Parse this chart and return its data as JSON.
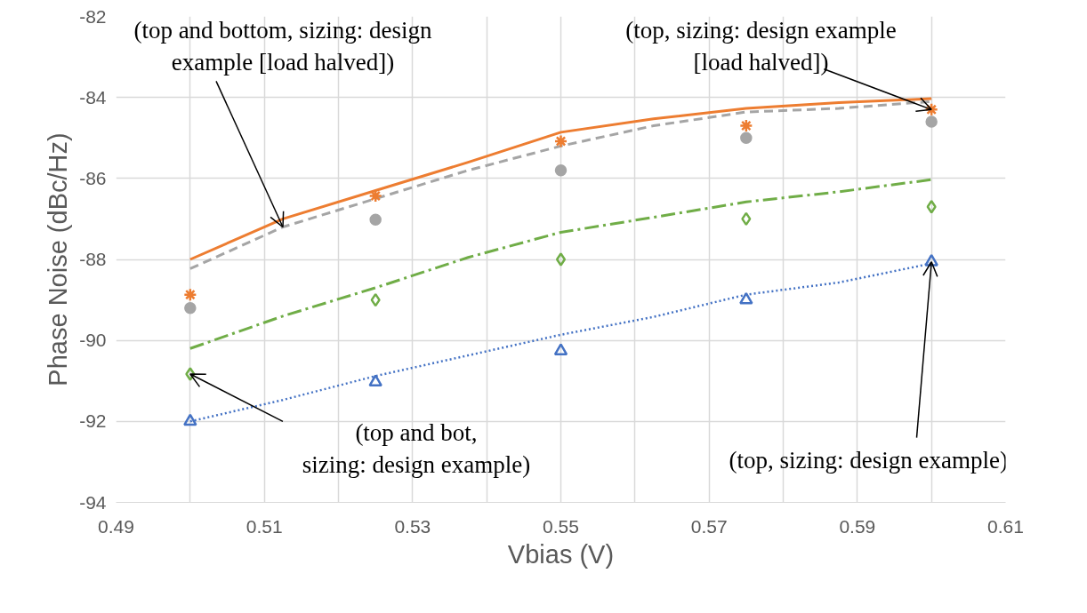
{
  "chart_data": {
    "type": "scatter",
    "xlabel": "Vbias (V)",
    "ylabel": "Phase Noise (dBc/Hz)",
    "xlim": [
      0.49,
      0.61
    ],
    "ylim": [
      -94,
      -82
    ],
    "xticks": [
      0.49,
      {
        "value": 0.5,
        "label": null
      },
      0.51,
      {
        "value": 0.52,
        "label": null
      },
      0.53,
      {
        "value": 0.54,
        "label": null
      },
      0.55,
      {
        "value": 0.56,
        "label": null
      },
      0.57,
      {
        "value": 0.58,
        "label": null
      },
      0.59,
      {
        "value": 0.6,
        "label": null
      },
      0.61
    ],
    "yticks": [
      -94,
      -92,
      -90,
      -88,
      -86,
      -84,
      -82
    ],
    "grid": true,
    "series": [
      {
        "marker": "cross",
        "color": "#ed7d31",
        "x": [
          0.5,
          0.525,
          0.55,
          0.575,
          0.6
        ],
        "values": [
          -88.87,
          -86.43,
          -85.08,
          -84.7,
          -84.3
        ]
      },
      {
        "marker": "circle",
        "color": "#a5a5a5",
        "x": [
          0.5,
          0.525,
          0.55,
          0.575,
          0.6
        ],
        "values": [
          -89.2,
          -87.02,
          -85.8,
          -85.0,
          -84.6
        ]
      },
      {
        "marker": "diamond",
        "color": "#70ad47",
        "x": [
          0.5,
          0.525,
          0.55,
          0.575,
          0.6
        ],
        "values": [
          -90.83,
          -89.0,
          -88.0,
          -87.0,
          -86.7
        ]
      },
      {
        "marker": "triangle",
        "color": "#4472c4",
        "x": [
          0.5,
          0.525,
          0.55,
          0.575,
          0.6
        ],
        "values": [
          -92.0,
          -91.03,
          -90.26,
          -89.0,
          -88.06
        ]
      },
      {
        "type": "line",
        "line_style": "solid",
        "color": "#ed7d31",
        "x": [
          0.5,
          0.5125,
          0.525,
          0.5375,
          0.55,
          0.5625,
          0.575,
          0.5875,
          0.6
        ],
        "values": [
          -88.0,
          -87.0,
          -86.3,
          -85.6,
          -84.86,
          -84.53,
          -84.27,
          -84.13,
          -84.03
        ]
      },
      {
        "type": "line",
        "line_style": "dashed",
        "color": "#a5a5a5",
        "x": [
          0.5,
          0.5125,
          0.525,
          0.5375,
          0.55,
          0.5625,
          0.575,
          0.5875,
          0.6
        ],
        "values": [
          -88.23,
          -87.2,
          -86.5,
          -85.8,
          -85.2,
          -84.7,
          -84.36,
          -84.27,
          -84.1
        ]
      },
      {
        "type": "line",
        "line_style": "dashdot",
        "color": "#70ad47",
        "x": [
          0.5,
          0.5125,
          0.525,
          0.5375,
          0.55,
          0.5625,
          0.575,
          0.5875,
          0.6
        ],
        "values": [
          -90.2,
          -89.4,
          -88.7,
          -87.95,
          -87.33,
          -86.96,
          -86.58,
          -86.33,
          -86.03
        ]
      },
      {
        "type": "line",
        "line_style": "dotted",
        "color": "#4472c4",
        "x": [
          0.5,
          0.5125,
          0.525,
          0.5375,
          0.55,
          0.5625,
          0.575,
          0.5875,
          0.6
        ],
        "values": [
          -92.0,
          -91.47,
          -90.88,
          -90.37,
          -89.86,
          -89.42,
          -88.87,
          -88.57,
          -88.1
        ]
      }
    ],
    "annotations": [
      {
        "text": "(top and bottom, sizing: design\nexample [load halved])",
        "x": 0.5125,
        "y": -87.2
      },
      {
        "text": "(top, sizing: design example\n[load halved])",
        "x": 0.6,
        "y": -84.3
      },
      {
        "text": "(top and bot,\nsizing: design example)",
        "x": 0.5,
        "y": -90.83
      },
      {
        "text": "(top, sizing: design example)",
        "x": 0.6,
        "y": -88.06
      }
    ]
  }
}
